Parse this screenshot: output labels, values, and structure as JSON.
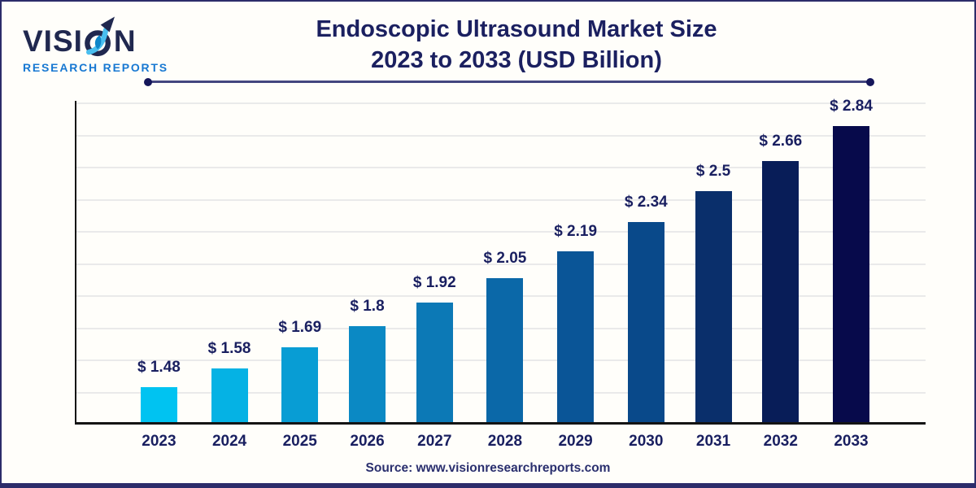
{
  "page": {
    "background": "#FFFEFA",
    "border_color": "#2C2C6A"
  },
  "logo": {
    "wordmark_prefix": "VISI",
    "wordmark_suffix": "N",
    "wordmark_full": "VISION",
    "subtitle": "RESEARCH REPORTS",
    "navy": "#20284F",
    "blue": "#1778D2",
    "swoosh_light": "#49BEEF",
    "swoosh_dark": "#0E86C9"
  },
  "title": {
    "line1": "Endoscopic Ultrasound Market Size",
    "line2": "2023 to 2033 (USD Billion)",
    "color": "#1B2060"
  },
  "source": {
    "text": "Source: www.visionresearchreports.com",
    "color": "#2A2F6E"
  },
  "chart_data": {
    "type": "bar",
    "title": "Endoscopic Ultrasound Market Size 2023 to 2033 (USD Billion)",
    "unit": "USD Billion",
    "categories": [
      "2023",
      "2024",
      "2025",
      "2026",
      "2027",
      "2028",
      "2029",
      "2030",
      "2031",
      "2032",
      "2033"
    ],
    "values": [
      1.48,
      1.58,
      1.69,
      1.8,
      1.92,
      2.05,
      2.19,
      2.34,
      2.5,
      2.66,
      2.84
    ],
    "value_labels": [
      "$ 1.48",
      "$ 1.58",
      "$ 1.69",
      "$ 1.8",
      "$ 1.92",
      "$ 2.05",
      "$ 2.19",
      "$ 2.34",
      "$ 2.5",
      "$ 2.66",
      "$ 2.84"
    ],
    "bar_colors": [
      "#00C3F1",
      "#05B2E4",
      "#089DD4",
      "#0B89C4",
      "#0C79B6",
      "#0B68A8",
      "#0A5597",
      "#09498A",
      "#0A2F6B",
      "#081D58",
      "#070A4B"
    ],
    "xlabel": "",
    "ylabel": "",
    "grid": true,
    "gridline_count": 10,
    "gridline_color": "#EAEAEA",
    "axis_color": "#141414",
    "label_color": "#191F60",
    "y_axis_display_min": 1.3,
    "y_axis_display_max": 2.84,
    "legend": "none"
  }
}
